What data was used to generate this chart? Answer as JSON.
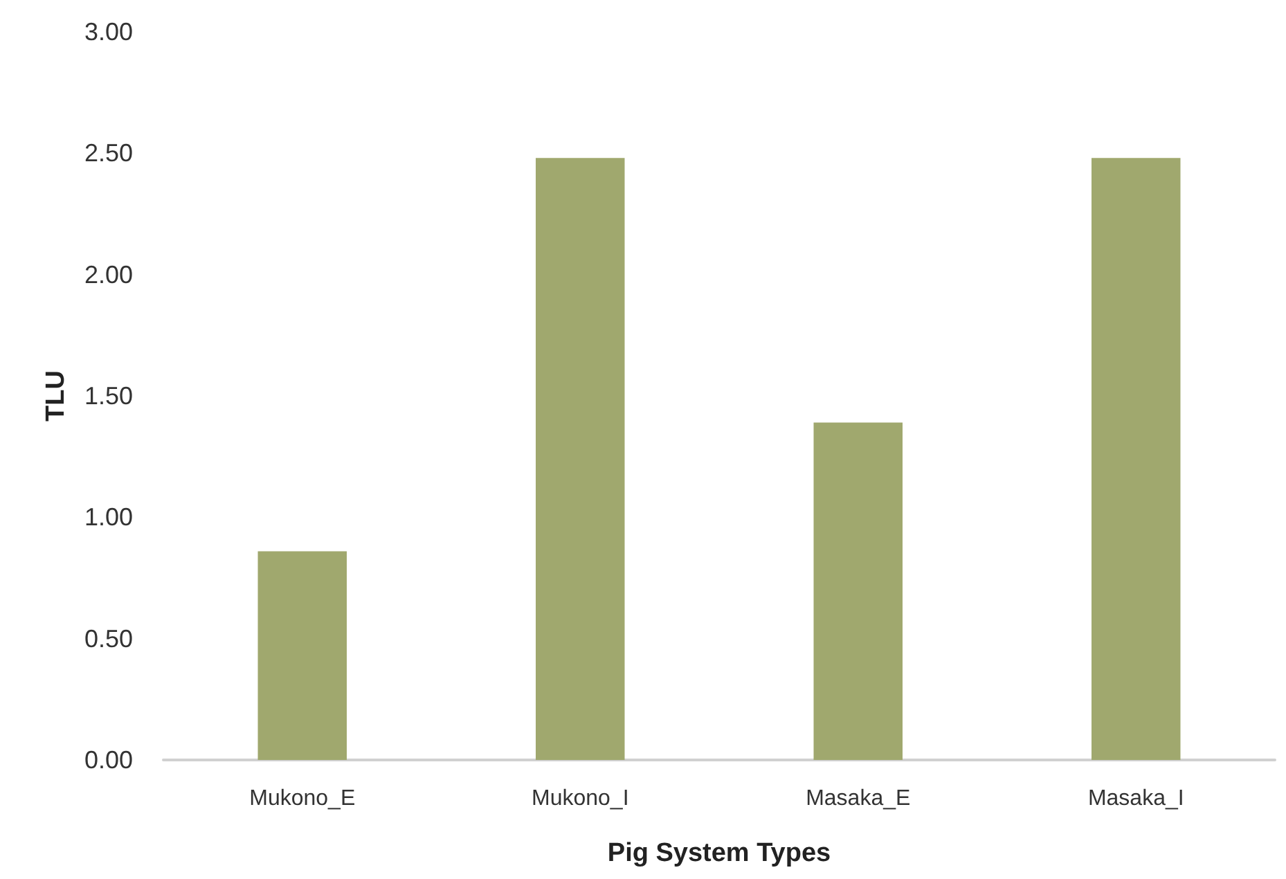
{
  "chart_data": {
    "type": "bar",
    "xlabel": "Pig System Types",
    "ylabel": "TLU",
    "categories": [
      "Mukono_E",
      "Mukono_I",
      "Masaka_E",
      "Masaka_I"
    ],
    "values": [
      0.86,
      2.48,
      1.39,
      2.48
    ],
    "color": "#a0a86e",
    "ylim": [
      0,
      3
    ],
    "yticks": [
      {
        "value": 0,
        "label": "0.00"
      },
      {
        "value": 0.5,
        "label": "0.50"
      },
      {
        "value": 1,
        "label": "1.00"
      },
      {
        "value": 1.5,
        "label": "1.50"
      },
      {
        "value": 2,
        "label": "2.00"
      },
      {
        "value": 2.5,
        "label": "2.50"
      },
      {
        "value": 3,
        "label": "3.00"
      }
    ],
    "grid": false
  }
}
